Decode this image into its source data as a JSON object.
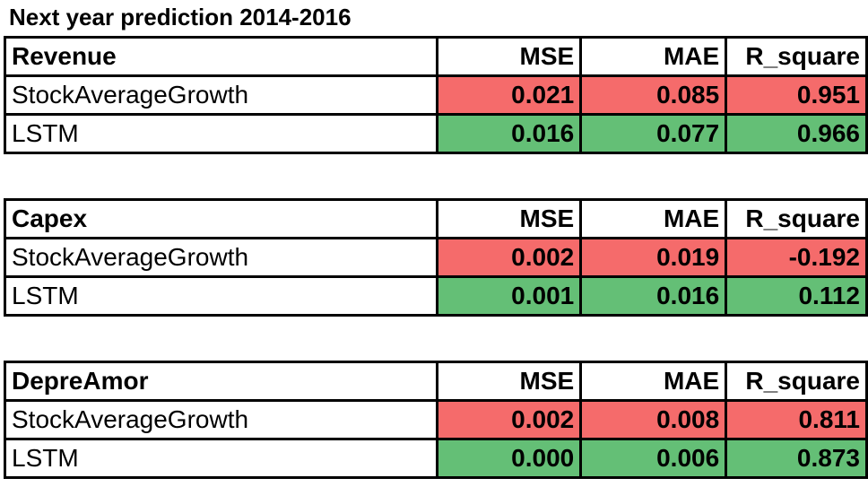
{
  "title": "Next year prediction 2014-2016",
  "columns": {
    "mse": "MSE",
    "mae": "MAE",
    "r2": "R_square"
  },
  "colors": {
    "worse": "#f56b6b",
    "better": "#64bf76"
  },
  "tables": [
    {
      "name": "Revenue",
      "rows": [
        {
          "model": "StockAverageGrowth",
          "mse": "0.021",
          "mae": "0.085",
          "r2": "0.951",
          "status": "worse"
        },
        {
          "model": "LSTM",
          "mse": "0.016",
          "mae": "0.077",
          "r2": "0.966",
          "status": "better"
        }
      ]
    },
    {
      "name": "Capex",
      "rows": [
        {
          "model": "StockAverageGrowth",
          "mse": "0.002",
          "mae": "0.019",
          "r2": "-0.192",
          "status": "worse"
        },
        {
          "model": "LSTM",
          "mse": "0.001",
          "mae": "0.016",
          "r2": "0.112",
          "status": "better"
        }
      ]
    },
    {
      "name": "DepreAmor",
      "rows": [
        {
          "model": "StockAverageGrowth",
          "mse": "0.002",
          "mae": "0.008",
          "r2": "0.811",
          "status": "worse"
        },
        {
          "model": "LSTM",
          "mse": "0.000",
          "mae": "0.006",
          "r2": "0.873",
          "status": "better"
        }
      ]
    }
  ]
}
